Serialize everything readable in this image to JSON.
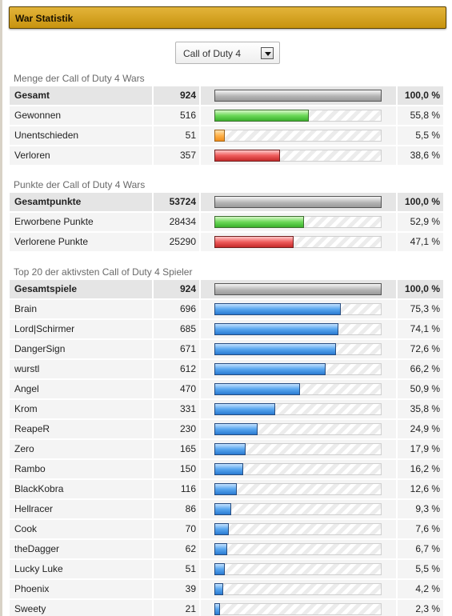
{
  "title": "War Statistik",
  "game_select": {
    "value": "Call of Duty 4"
  },
  "sections": [
    {
      "title": "Menge der Call of Duty 4 Wars",
      "rows": [
        {
          "label": "Gesamt",
          "value": "924",
          "percent": "100,0 %",
          "fraction": 1.0,
          "color": "gray",
          "head": true
        },
        {
          "label": "Gewonnen",
          "value": "516",
          "percent": "55,8 %",
          "fraction": 0.558,
          "color": "green"
        },
        {
          "label": "Unentschieden",
          "value": "51",
          "percent": "5,5 %",
          "fraction": 0.055,
          "color": "orange"
        },
        {
          "label": "Verloren",
          "value": "357",
          "percent": "38,6 %",
          "fraction": 0.386,
          "color": "red"
        }
      ]
    },
    {
      "title": "Punkte der Call of Duty 4 Wars",
      "rows": [
        {
          "label": "Gesamtpunkte",
          "value": "53724",
          "percent": "100,0 %",
          "fraction": 1.0,
          "color": "gray",
          "head": true
        },
        {
          "label": "Erworbene Punkte",
          "value": "28434",
          "percent": "52,9 %",
          "fraction": 0.529,
          "color": "green"
        },
        {
          "label": "Verlorene Punkte",
          "value": "25290",
          "percent": "47,1 %",
          "fraction": 0.471,
          "color": "red"
        }
      ]
    },
    {
      "title": "Top 20 der aktivsten Call of Duty 4 Spieler",
      "rows": [
        {
          "label": "Gesamtspiele",
          "value": "924",
          "percent": "100,0 %",
          "fraction": 1.0,
          "color": "gray",
          "head": true
        },
        {
          "label": "Brain",
          "value": "696",
          "percent": "75,3 %",
          "fraction": 0.753,
          "color": "blue"
        },
        {
          "label": "Lord|Schirmer",
          "value": "685",
          "percent": "74,1 %",
          "fraction": 0.741,
          "color": "blue"
        },
        {
          "label": "DangerSign",
          "value": "671",
          "percent": "72,6 %",
          "fraction": 0.726,
          "color": "blue"
        },
        {
          "label": "wurstl",
          "value": "612",
          "percent": "66,2 %",
          "fraction": 0.662,
          "color": "blue"
        },
        {
          "label": "Angel",
          "value": "470",
          "percent": "50,9 %",
          "fraction": 0.509,
          "color": "blue"
        },
        {
          "label": "Krom",
          "value": "331",
          "percent": "35,8 %",
          "fraction": 0.358,
          "color": "blue"
        },
        {
          "label": "ReapeR",
          "value": "230",
          "percent": "24,9 %",
          "fraction": 0.249,
          "color": "blue"
        },
        {
          "label": "Zero",
          "value": "165",
          "percent": "17,9 %",
          "fraction": 0.179,
          "color": "blue"
        },
        {
          "label": "Rambo",
          "value": "150",
          "percent": "16,2 %",
          "fraction": 0.162,
          "color": "blue"
        },
        {
          "label": "BlackKobra",
          "value": "116",
          "percent": "12,6 %",
          "fraction": 0.126,
          "color": "blue"
        },
        {
          "label": "Hellracer",
          "value": "86",
          "percent": "9,3 %",
          "fraction": 0.093,
          "color": "blue"
        },
        {
          "label": "Cook",
          "value": "70",
          "percent": "7,6 %",
          "fraction": 0.076,
          "color": "blue"
        },
        {
          "label": "theDagger",
          "value": "62",
          "percent": "6,7 %",
          "fraction": 0.067,
          "color": "blue"
        },
        {
          "label": "Lucky Luke",
          "value": "51",
          "percent": "5,5 %",
          "fraction": 0.055,
          "color": "blue"
        },
        {
          "label": "Phoenix",
          "value": "39",
          "percent": "4,2 %",
          "fraction": 0.042,
          "color": "blue"
        },
        {
          "label": "Sweety",
          "value": "21",
          "percent": "2,3 %",
          "fraction": 0.023,
          "color": "blue"
        }
      ]
    }
  ]
}
